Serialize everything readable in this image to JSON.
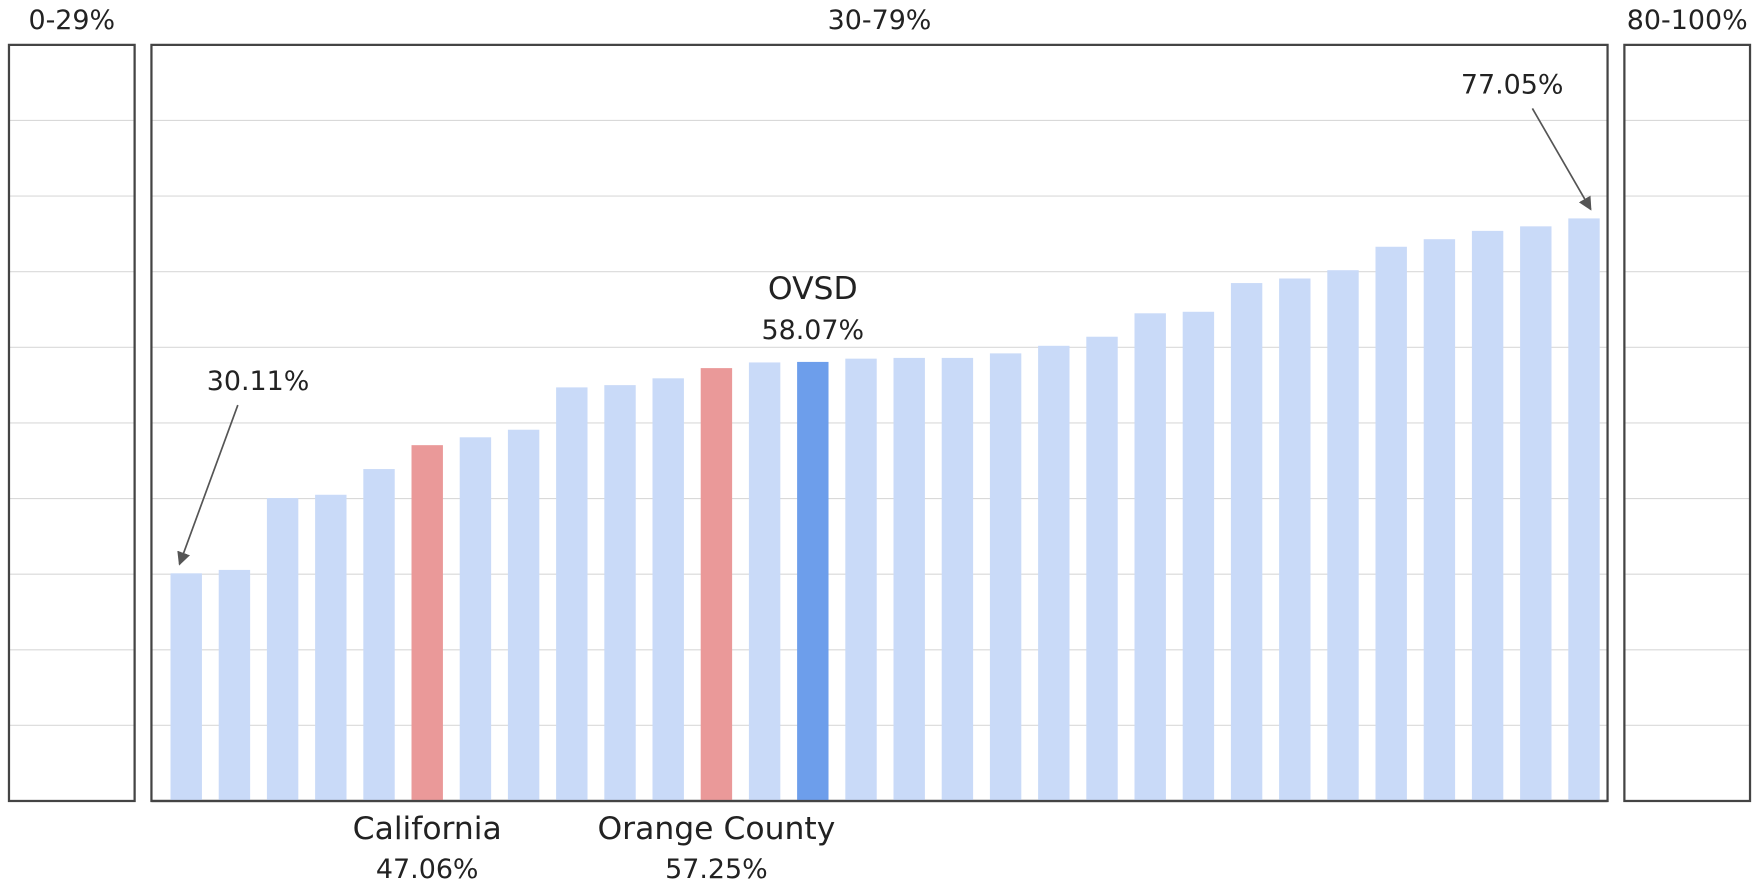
{
  "chart_data": {
    "type": "bar",
    "panels": [
      "0-29%",
      "30-79%",
      "80-100%"
    ],
    "categories": [
      null,
      null,
      null,
      null,
      null,
      "California",
      null,
      null,
      null,
      null,
      null,
      "Orange County",
      null,
      "OVSD",
      null,
      null,
      null,
      null,
      null,
      null,
      null,
      null,
      null,
      null,
      null,
      null,
      null,
      null,
      null,
      null
    ],
    "values": [
      30.11,
      30.56,
      40.06,
      40.5,
      43.9,
      47.06,
      48.1,
      49.1,
      54.7,
      55.0,
      55.9,
      57.25,
      58.0,
      58.07,
      58.5,
      58.6,
      58.6,
      59.2,
      60.2,
      61.4,
      64.5,
      64.7,
      68.5,
      69.1,
      70.2,
      73.3,
      74.3,
      75.4,
      76.0,
      77.05
    ],
    "value_labels": [
      "30.11%",
      null,
      null,
      null,
      null,
      "47.06%",
      null,
      null,
      null,
      null,
      null,
      "57.25%",
      null,
      "58.07%",
      null,
      null,
      null,
      null,
      null,
      null,
      null,
      null,
      null,
      null,
      null,
      null,
      null,
      null,
      null,
      "77.05%"
    ],
    "colors": [
      "#c9daf8",
      "#c9daf8",
      "#c9daf8",
      "#c9daf8",
      "#c9daf8",
      "#ea9999",
      "#c9daf8",
      "#c9daf8",
      "#c9daf8",
      "#c9daf8",
      "#c9daf8",
      "#ea9999",
      "#c9daf8",
      "#6d9eeb",
      "#c9daf8",
      "#c9daf8",
      "#c9daf8",
      "#c9daf8",
      "#c9daf8",
      "#c9daf8",
      "#c9daf8",
      "#c9daf8",
      "#c9daf8",
      "#c9daf8",
      "#c9daf8",
      "#c9daf8",
      "#c9daf8",
      "#c9daf8",
      "#c9daf8",
      "#c9daf8"
    ],
    "ylim": [
      0,
      100
    ],
    "yticks": [
      10,
      20,
      30,
      40,
      50,
      60,
      70,
      80,
      90
    ],
    "grid": true
  }
}
